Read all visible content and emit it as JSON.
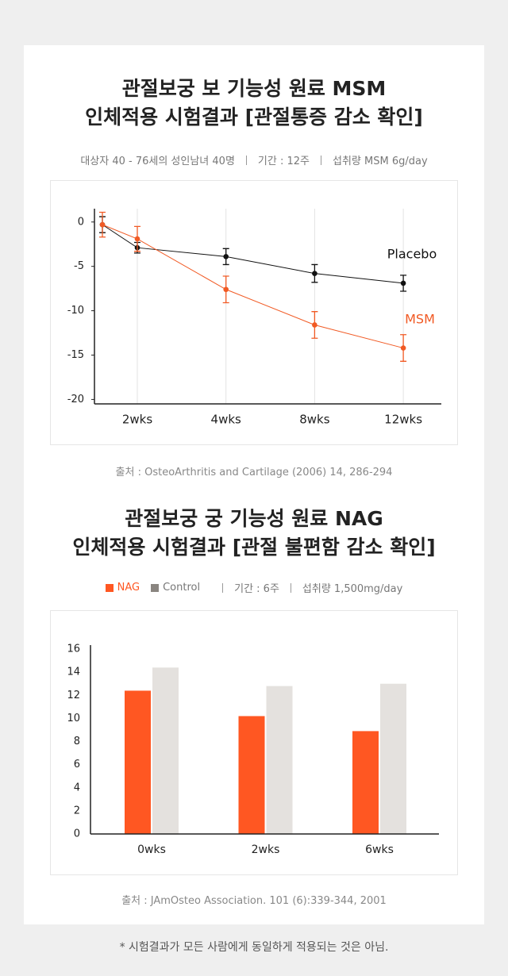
{
  "chart_data": [
    {
      "type": "line",
      "title": [
        "관절보궁 보 기능성 원료 MSM",
        "인체적용 시험결과 [관절통증 감소 확인]"
      ],
      "subtitle": [
        "대상자 40 - 76세의 성인남녀 40명",
        "기간 : 12주",
        "섭취량 MSM 6g/day"
      ],
      "categories": [
        null,
        "2wks",
        "4wks",
        "8wks",
        "12wks"
      ],
      "series": [
        {
          "name": "Placebo",
          "color": "#111111",
          "values": [
            -0.3,
            -2.9,
            -3.9,
            -5.8,
            -6.9
          ],
          "errors": [
            0.9,
            0.6,
            0.9,
            1.0,
            0.9
          ]
        },
        {
          "name": "MSM",
          "color": "#f15a24",
          "values": [
            -0.3,
            -1.9,
            -7.6,
            -11.6,
            -14.2
          ],
          "errors": [
            1.4,
            1.4,
            1.5,
            1.5,
            1.5
          ]
        }
      ],
      "ylim": [
        -20.5,
        1.5
      ],
      "yticks": [
        0,
        -5,
        -10,
        -15,
        -20
      ],
      "grid": true,
      "source": "출처 : OsteoArthritis and Cartilage (2006) 14, 286-294"
    },
    {
      "type": "bar",
      "title": [
        "관절보궁 궁 기능성 원료 NAG",
        "인체적용 시험결과 [관절 불편함 감소 확인]"
      ],
      "subtitle": [
        "기간 : 6주",
        "섭취량 1,500mg/day"
      ],
      "categories": [
        "0wks",
        "2wks",
        "6wks"
      ],
      "series": [
        {
          "name": "NAG",
          "color": "#ff5722",
          "values": [
            12.4,
            10.2,
            8.9
          ]
        },
        {
          "name": "Control",
          "color": "#e4e1de",
          "values": [
            14.4,
            12.8,
            13.0
          ]
        }
      ],
      "legend_color": [
        "#ff5722",
        "#8a8580"
      ],
      "ylim": [
        0,
        16
      ],
      "yticks": [
        0,
        2,
        4,
        6,
        8,
        10,
        12,
        14,
        16
      ],
      "grid": false,
      "source": "출처 : JAmOsteo Association. 101 (6):339-344, 2001"
    }
  ],
  "footnote": "* 시험결과가 모든 사람에게 동일하게 적용되는 것은 아님."
}
